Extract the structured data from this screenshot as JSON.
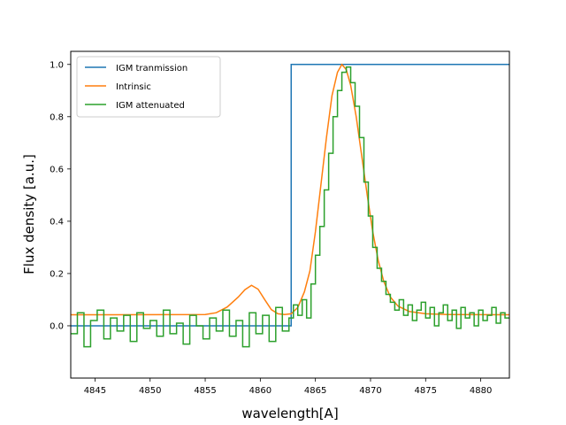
{
  "chart_data": {
    "type": "line",
    "xlabel": "wavelength[A]",
    "ylabel": "Flux density [a.u.]",
    "xlim": [
      4842.8,
      4882.6
    ],
    "ylim": [
      -0.2,
      1.05
    ],
    "xticks": [
      4845,
      4850,
      4855,
      4860,
      4865,
      4870,
      4875,
      4880
    ],
    "xtick_labels": [
      "4845",
      "4850",
      "4855",
      "4860",
      "4865",
      "4870",
      "4875",
      "4880"
    ],
    "yticks": [
      0.0,
      0.2,
      0.4,
      0.6,
      0.8,
      1.0
    ],
    "ytick_labels": [
      "0.0",
      "0.2",
      "0.4",
      "0.6",
      "0.8",
      "1.0"
    ],
    "grid": false,
    "legend_position": "top-left",
    "series": [
      {
        "name": "IGM tranmission",
        "color": "#1f77b4",
        "style": "step",
        "x": [
          4842.8,
          4862.8,
          4862.8,
          4882.6
        ],
        "y": [
          0.0,
          0.0,
          1.0,
          1.0
        ]
      },
      {
        "name": "Intrinsic",
        "color": "#ff7f0e",
        "style": "line",
        "x": [
          4842.8,
          4855.0,
          4856.0,
          4857.0,
          4858.0,
          4858.6,
          4859.2,
          4859.8,
          4860.4,
          4861.0,
          4861.6,
          4862.2,
          4862.8,
          4863.4,
          4864.0,
          4864.5,
          4865.0,
          4865.5,
          4866.0,
          4866.5,
          4867.0,
          4867.4,
          4867.8,
          4868.2,
          4868.7,
          4869.2,
          4869.7,
          4870.2,
          4870.7,
          4871.2,
          4871.8,
          4872.5,
          4873.5,
          4875.0,
          4877.0,
          4882.6
        ],
        "y": [
          0.042,
          0.043,
          0.05,
          0.072,
          0.11,
          0.138,
          0.155,
          0.14,
          0.1,
          0.062,
          0.046,
          0.043,
          0.046,
          0.07,
          0.13,
          0.21,
          0.36,
          0.54,
          0.72,
          0.88,
          0.97,
          1.0,
          0.98,
          0.92,
          0.8,
          0.65,
          0.5,
          0.36,
          0.25,
          0.17,
          0.11,
          0.075,
          0.055,
          0.046,
          0.043,
          0.042
        ]
      },
      {
        "name": "IGM attenuated",
        "color": "#2ca02c",
        "style": "step",
        "x": [
          4842.8,
          4843.4,
          4844.0,
          4844.6,
          4845.2,
          4845.8,
          4846.4,
          4847.0,
          4847.6,
          4848.2,
          4848.8,
          4849.4,
          4850.0,
          4850.6,
          4851.2,
          4851.8,
          4852.4,
          4853.0,
          4853.6,
          4854.2,
          4854.8,
          4855.4,
          4856.0,
          4856.6,
          4857.2,
          4857.8,
          4858.4,
          4859.0,
          4859.6,
          4860.2,
          4860.8,
          4861.4,
          4862.0,
          4862.6,
          4863.0,
          4863.4,
          4863.8,
          4864.2,
          4864.6,
          4865.0,
          4865.4,
          4865.8,
          4866.2,
          4866.6,
          4867.0,
          4867.4,
          4867.8,
          4868.2,
          4868.6,
          4869.0,
          4869.4,
          4869.8,
          4870.2,
          4870.6,
          4871.0,
          4871.4,
          4871.8,
          4872.2,
          4872.6,
          4873.0,
          4873.4,
          4873.8,
          4874.2,
          4874.6,
          4875.0,
          4875.4,
          4875.8,
          4876.2,
          4876.6,
          4877.0,
          4877.4,
          4877.8,
          4878.2,
          4878.6,
          4879.0,
          4879.4,
          4879.8,
          4880.2,
          4880.6,
          4881.0,
          4881.4,
          4881.8,
          4882.2
        ],
        "y": [
          -0.03,
          0.05,
          -0.08,
          0.02,
          0.06,
          -0.05,
          0.03,
          -0.02,
          0.04,
          -0.06,
          0.05,
          -0.01,
          0.02,
          -0.04,
          0.06,
          -0.03,
          0.01,
          -0.07,
          0.04,
          0.0,
          -0.05,
          0.03,
          -0.02,
          0.06,
          -0.04,
          0.02,
          -0.08,
          0.05,
          -0.03,
          0.04,
          -0.06,
          0.07,
          -0.02,
          0.03,
          0.08,
          0.04,
          0.1,
          0.03,
          0.16,
          0.27,
          0.38,
          0.52,
          0.66,
          0.8,
          0.9,
          0.97,
          0.99,
          0.93,
          0.84,
          0.72,
          0.55,
          0.42,
          0.3,
          0.22,
          0.17,
          0.12,
          0.09,
          0.06,
          0.1,
          0.04,
          0.08,
          0.02,
          0.06,
          0.09,
          0.03,
          0.07,
          0.0,
          0.05,
          0.08,
          0.02,
          0.06,
          -0.01,
          0.07,
          0.03,
          0.05,
          0.0,
          0.06,
          0.02,
          0.04,
          0.07,
          0.01,
          0.05,
          0.03
        ]
      }
    ]
  }
}
